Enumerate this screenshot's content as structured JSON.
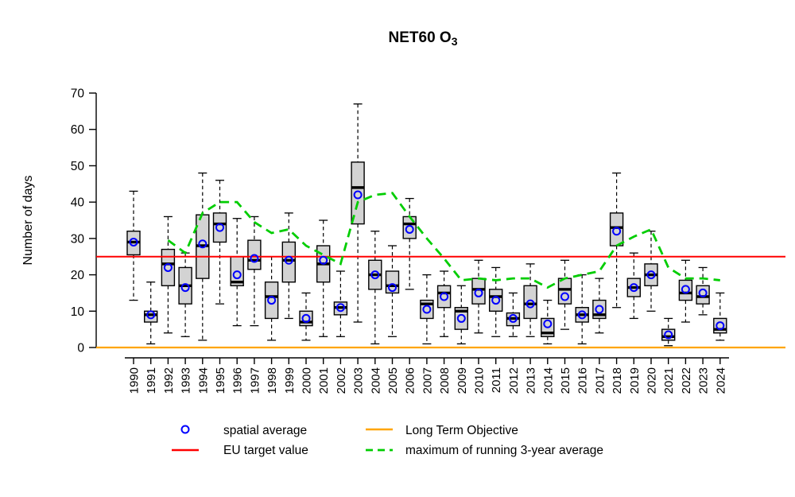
{
  "title": {
    "main": "NET60 O",
    "sub": "3"
  },
  "y_axis": {
    "label": "Number of days",
    "ticks": [
      0,
      10,
      20,
      30,
      40,
      50,
      60,
      70
    ],
    "range": [
      0,
      70
    ]
  },
  "reference_lines": {
    "eu_target_value": 25,
    "long_term_objective": 0
  },
  "legend": [
    {
      "label": "spatial average",
      "symbol": "open-circle"
    },
    {
      "label": "EU target value",
      "symbol": "solid-line"
    },
    {
      "label": "Long Term Objective",
      "symbol": "solid-line"
    },
    {
      "label": "maximum of running 3-year average",
      "symbol": "dashed-line"
    }
  ],
  "colors": {
    "box_fill": "#d3d3d3",
    "box_border": "#000000",
    "mean": "#0000ff",
    "eu_target": "#ff0000",
    "long_term_objective": "#ffa500",
    "running_avg": "#00cd00"
  },
  "chart_data": {
    "type": "boxplot",
    "title": "NET60 O3",
    "xlabel": "",
    "ylabel": "Number of days",
    "ylim": [
      0,
      70
    ],
    "grid": false,
    "legend_position": "bottom",
    "series_notes": "boxes = min/q1/median/q3/max per year; mean = blue open circle (spatial average); max3yr = green dashed line (maximum of running 3-year average), starts 1992; EU target value = 25; Long Term Objective = 0",
    "boxes": [
      {
        "year": 1990,
        "min": 13,
        "q1": 25.5,
        "median": 29,
        "q3": 32,
        "max": 43,
        "mean": 29,
        "max3yr": null
      },
      {
        "year": 1991,
        "min": 1,
        "q1": 7,
        "median": 9,
        "q3": 10,
        "max": 18,
        "mean": 9,
        "max3yr": null
      },
      {
        "year": 1992,
        "min": 4,
        "q1": 17,
        "median": 23,
        "q3": 27,
        "max": 36,
        "mean": 22,
        "max3yr": 29.5
      },
      {
        "year": 1993,
        "min": 3,
        "q1": 12,
        "median": 17,
        "q3": 22,
        "max": 26,
        "mean": 16.5,
        "max3yr": 26
      },
      {
        "year": 1994,
        "min": 2,
        "q1": 19,
        "median": 28,
        "q3": 36.5,
        "max": 48,
        "mean": 28.5,
        "max3yr": 37
      },
      {
        "year": 1995,
        "min": 12,
        "q1": 29,
        "median": 34,
        "q3": 37,
        "max": 46,
        "mean": 33,
        "max3yr": 40
      },
      {
        "year": 1996,
        "min": 6,
        "q1": 17,
        "median": 18,
        "q3": 25,
        "max": 35.5,
        "mean": 20,
        "max3yr": 40
      },
      {
        "year": 1997,
        "min": 6,
        "q1": 21.5,
        "median": 24,
        "q3": 29.5,
        "max": 36,
        "mean": 24.5,
        "max3yr": 34.5
      },
      {
        "year": 1998,
        "min": 2,
        "q1": 8,
        "median": 14,
        "q3": 18,
        "max": 25,
        "mean": 13,
        "max3yr": 31.5
      },
      {
        "year": 1999,
        "min": 8,
        "q1": 18,
        "median": 24,
        "q3": 29,
        "max": 37,
        "mean": 24,
        "max3yr": 32.5
      },
      {
        "year": 2000,
        "min": 2,
        "q1": 6,
        "median": 7,
        "q3": 10,
        "max": 15,
        "mean": 8,
        "max3yr": 28
      },
      {
        "year": 2001,
        "min": 3,
        "q1": 18,
        "median": 23,
        "q3": 28,
        "max": 35,
        "mean": 24,
        "max3yr": 25.5
      },
      {
        "year": 2002,
        "min": 3,
        "q1": 9,
        "median": 11,
        "q3": 12.5,
        "max": 21,
        "mean": 11,
        "max3yr": 23
      },
      {
        "year": 2003,
        "min": 7,
        "q1": 34,
        "median": 44,
        "q3": 51,
        "max": 67,
        "mean": 42,
        "max3yr": 40
      },
      {
        "year": 2004,
        "min": 1,
        "q1": 16,
        "median": 20,
        "q3": 24,
        "max": 32,
        "mean": 20,
        "max3yr": 42
      },
      {
        "year": 2005,
        "min": 3,
        "q1": 15,
        "median": 17,
        "q3": 21,
        "max": 28,
        "mean": 16.5,
        "max3yr": 42.5
      },
      {
        "year": 2006,
        "min": 16,
        "q1": 30,
        "median": 34,
        "q3": 36,
        "max": 41,
        "mean": 32.5,
        "max3yr": 36
      },
      {
        "year": 2007,
        "min": 1,
        "q1": 8,
        "median": 12,
        "q3": 13,
        "max": 20,
        "mean": 10.5,
        "max3yr": 30
      },
      {
        "year": 2008,
        "min": 3,
        "q1": 11,
        "median": 15,
        "q3": 17,
        "max": 21,
        "mean": 14,
        "max3yr": 24.5
      },
      {
        "year": 2009,
        "min": 1,
        "q1": 5,
        "median": 10,
        "q3": 11,
        "max": 17,
        "mean": 8,
        "max3yr": 18.5
      },
      {
        "year": 2010,
        "min": 4,
        "q1": 12,
        "median": 16,
        "q3": 19,
        "max": 24,
        "mean": 15,
        "max3yr": 19
      },
      {
        "year": 2011,
        "min": 3,
        "q1": 10,
        "median": 14,
        "q3": 16,
        "max": 22,
        "mean": 13,
        "max3yr": 18.5
      },
      {
        "year": 2012,
        "min": 3,
        "q1": 6,
        "median": 8,
        "q3": 9.5,
        "max": 15,
        "mean": 8,
        "max3yr": 19
      },
      {
        "year": 2013,
        "min": 3,
        "q1": 8,
        "median": 12,
        "q3": 17,
        "max": 23,
        "mean": 12,
        "max3yr": 19
      },
      {
        "year": 2014,
        "min": 1,
        "q1": 3,
        "median": 4,
        "q3": 8,
        "max": 13,
        "mean": 6.5,
        "max3yr": 16.5
      },
      {
        "year": 2015,
        "min": 5,
        "q1": 12,
        "median": 16,
        "q3": 19,
        "max": 24,
        "mean": 14,
        "max3yr": 19
      },
      {
        "year": 2016,
        "min": 1,
        "q1": 7,
        "median": 9,
        "q3": 11,
        "max": 20,
        "mean": 9,
        "max3yr": 20
      },
      {
        "year": 2017,
        "min": 4,
        "q1": 8,
        "median": 9,
        "q3": 13,
        "max": 19,
        "mean": 10.5,
        "max3yr": 21
      },
      {
        "year": 2018,
        "min": 11,
        "q1": 28,
        "median": 33,
        "q3": 37,
        "max": 48,
        "mean": 32,
        "max3yr": 28
      },
      {
        "year": 2019,
        "min": 8,
        "q1": 14,
        "median": 16.5,
        "q3": 19,
        "max": 26,
        "mean": 16.5,
        "max3yr": 30.5
      },
      {
        "year": 2020,
        "min": 10,
        "q1": 17,
        "median": 20,
        "q3": 23,
        "max": 32,
        "mean": 20,
        "max3yr": 32.5
      },
      {
        "year": 2021,
        "min": 0.5,
        "q1": 2,
        "median": 3,
        "q3": 5,
        "max": 8,
        "mean": 3.5,
        "max3yr": 22
      },
      {
        "year": 2022,
        "min": 7,
        "q1": 13,
        "median": 15,
        "q3": 18.5,
        "max": 24,
        "mean": 16,
        "max3yr": 19
      },
      {
        "year": 2023,
        "min": 9,
        "q1": 12,
        "median": 14,
        "q3": 17,
        "max": 22,
        "mean": 15,
        "max3yr": 19
      },
      {
        "year": 2024,
        "min": 2,
        "q1": 4,
        "median": 5,
        "q3": 8,
        "max": 15,
        "mean": 6,
        "max3yr": 18.5
      }
    ]
  }
}
